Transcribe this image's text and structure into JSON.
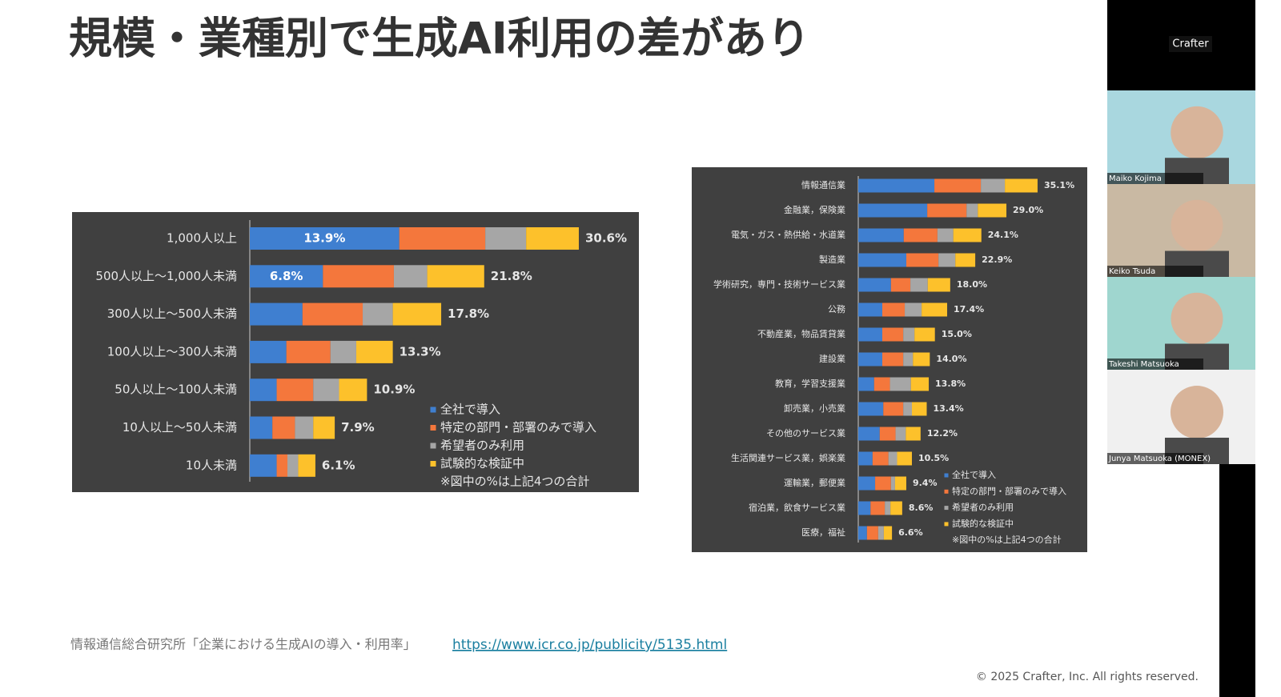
{
  "slide": {
    "title": "規模・業種別で生成AI利用の差があり",
    "source": "情報通信総合研究所「企業における生成AIの導入・利用率」",
    "link": "https://www.icr.co.jp/publicity/5135.html",
    "copyright": "© 2025 Crafter, Inc. All rights reserved."
  },
  "chart_data": [
    {
      "type": "bar",
      "orientation": "horizontal",
      "stacked": true,
      "categories": [
        "1,000人以上",
        "500人以上～1,000人未満",
        "300人以上～500人未満",
        "100人以上～300人未満",
        "50人以上～100人未満",
        "10人以上～50人未満",
        "10人未満"
      ],
      "series": [
        {
          "name": "全社で導入",
          "color": "#3f7fd0",
          "values": [
            13.9,
            6.8,
            4.9,
            3.4,
            2.5,
            2.1,
            2.5
          ],
          "value_labels": [
            "13.9%",
            "6.8%",
            null,
            null,
            null,
            null,
            null
          ]
        },
        {
          "name": "特定の部門・部署のみで導入",
          "color": "#f4773c",
          "values": [
            8.0,
            6.6,
            5.6,
            4.1,
            3.4,
            2.1,
            1.0
          ]
        },
        {
          "name": "希望者のみ利用",
          "color": "#a6a6a6",
          "values": [
            3.8,
            3.1,
            2.8,
            2.4,
            2.4,
            1.7,
            1.0
          ]
        },
        {
          "name": "試験的な検証中",
          "color": "#fdc12b",
          "values": [
            4.9,
            5.3,
            4.5,
            3.4,
            2.6,
            2.0,
            1.6
          ]
        }
      ],
      "totals": {
        "values": [
          30.6,
          21.8,
          17.8,
          13.3,
          10.9,
          7.9,
          6.1
        ],
        "value_labels": [
          "30.6%",
          "21.8%",
          "17.8%",
          "13.3%",
          "10.9%",
          "7.9%",
          "6.1%"
        ]
      },
      "note": "※図中の%は上記4つの合計"
    },
    {
      "type": "bar",
      "orientation": "horizontal",
      "stacked": true,
      "categories": [
        "情報通信業",
        "金融業，保険業",
        "電気・ガス・熱供給・水道業",
        "製造業",
        "学術研究，専門・技術サービス業",
        "公務",
        "不動産業，物品賃貸業",
        "建設業",
        "教育，学習支援業",
        "卸売業，小売業",
        "その他のサービス業",
        "生活関連サービス業，娯楽業",
        "運輸業，郵便業",
        "宿泊業，飲食サービス業",
        "医療，福祉"
      ],
      "series": [
        {
          "name": "全社で導入",
          "color": "#3f7fd0",
          "values": [
            14.9,
            13.5,
            8.9,
            9.4,
            6.4,
            4.7,
            4.7,
            4.7,
            3.1,
            4.9,
            4.2,
            2.8,
            3.3,
            2.4,
            1.7
          ]
        },
        {
          "name": "特定の部門・部署のみで導入",
          "color": "#f4773c",
          "values": [
            9.1,
            7.7,
            6.6,
            6.3,
            3.8,
            4.4,
            4.1,
            4.1,
            3.1,
            3.9,
            3.1,
            3.1,
            3.1,
            2.8,
            2.2
          ]
        },
        {
          "name": "希望者のみ利用",
          "color": "#a6a6a6",
          "values": [
            4.7,
            2.2,
            3.1,
            3.3,
            3.4,
            3.3,
            2.2,
            1.9,
            4.1,
            1.7,
            2.0,
            1.7,
            0.8,
            1.1,
            1.1
          ]
        },
        {
          "name": "試験的な検証中",
          "color": "#fdc12b",
          "values": [
            6.4,
            5.6,
            5.5,
            3.9,
            4.4,
            5.0,
            4.0,
            3.3,
            3.5,
            2.9,
            2.9,
            2.9,
            2.2,
            2.3,
            1.6
          ]
        }
      ],
      "totals": {
        "values": [
          35.1,
          29.0,
          24.1,
          22.9,
          18.0,
          17.4,
          15.0,
          14.0,
          13.8,
          13.4,
          12.2,
          10.5,
          9.4,
          8.6,
          6.6
        ],
        "value_labels": [
          "35.1%",
          "29.0%",
          "24.1%",
          "22.9%",
          "18.0%",
          "17.4%",
          "15.0%",
          "14.0%",
          "13.8%",
          "13.4%",
          "12.2%",
          "10.5%",
          "9.4%",
          "8.6%",
          "6.6%"
        ]
      },
      "note": "※図中の%は上記4つの合計"
    }
  ],
  "meeting": {
    "app_name": "Crafter",
    "participants": [
      "Maiko Kojima",
      "Keiko Tsuda",
      "Takeshi Matsuoka",
      "Junya Matsuoka (MONEX)"
    ]
  }
}
